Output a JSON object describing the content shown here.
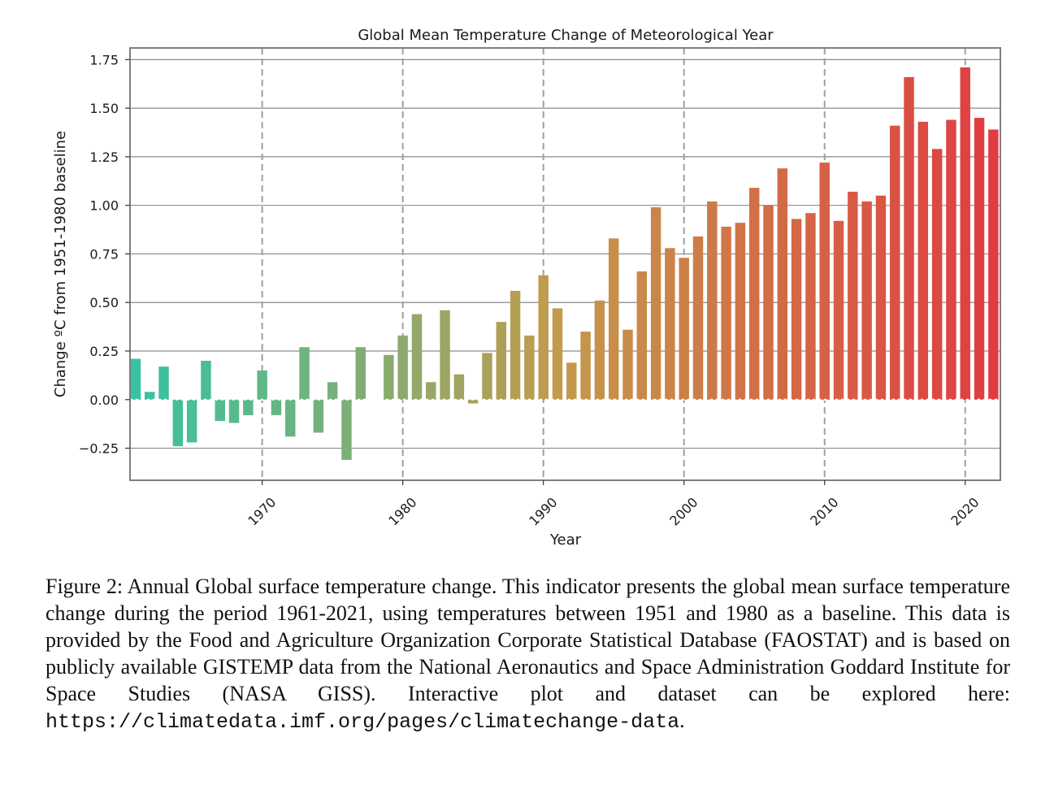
{
  "chart_data": {
    "type": "bar",
    "title": "Global Mean Temperature Change of Meteorological Year",
    "xlabel": "Year",
    "ylabel": "Change ºC from 1951-1980 baseline",
    "x": [
      1961,
      1962,
      1963,
      1964,
      1965,
      1966,
      1967,
      1968,
      1969,
      1970,
      1971,
      1972,
      1973,
      1974,
      1975,
      1976,
      1977,
      1978,
      1979,
      1980,
      1981,
      1982,
      1983,
      1984,
      1985,
      1986,
      1987,
      1988,
      1989,
      1990,
      1991,
      1992,
      1993,
      1994,
      1995,
      1996,
      1997,
      1998,
      1999,
      2000,
      2001,
      2002,
      2003,
      2004,
      2005,
      2006,
      2007,
      2008,
      2009,
      2010,
      2011,
      2012,
      2013,
      2014,
      2015,
      2016,
      2017,
      2018,
      2019,
      2020,
      2021,
      2022
    ],
    "values": [
      0.21,
      0.04,
      0.17,
      -0.24,
      -0.22,
      0.2,
      -0.11,
      -0.12,
      -0.08,
      0.15,
      -0.08,
      -0.19,
      0.27,
      -0.17,
      0.09,
      -0.31,
      0.27,
      null,
      0.23,
      0.33,
      0.44,
      0.09,
      0.46,
      0.13,
      -0.02,
      0.24,
      0.4,
      0.56,
      0.33,
      0.64,
      0.47,
      0.19,
      0.35,
      0.51,
      0.83,
      0.36,
      0.66,
      0.99,
      0.78,
      0.73,
      0.84,
      1.02,
      0.89,
      0.91,
      1.09,
      1.0,
      1.19,
      0.93,
      0.96,
      1.22,
      0.92,
      1.07,
      1.02,
      1.05,
      1.41,
      1.66,
      1.43,
      1.29,
      1.44,
      1.71,
      1.45,
      1.39
    ],
    "xlim": [
      1960.6,
      2022.5
    ],
    "ylim": [
      -0.415,
      1.81
    ],
    "xticks": [
      1970,
      1980,
      1990,
      2000,
      2010,
      2020
    ],
    "xtick_labels": [
      "1970",
      "1980",
      "1990",
      "2000",
      "2010",
      "2020"
    ],
    "yticks": [
      -0.25,
      0,
      0.25,
      0.5,
      0.75,
      1.0,
      1.25,
      1.5,
      1.75
    ],
    "ytick_labels": [
      "−0.25",
      "0.00",
      "0.25",
      "0.50",
      "0.75",
      "1.00",
      "1.25",
      "1.50",
      "1.75"
    ],
    "grid": true,
    "colors": {
      "start": "#36c3a2",
      "mid": "#c49a4b",
      "end": "#e13c42",
      "grid": "#8a8a8a",
      "vline": "#a0a0a0",
      "frame": "#7f7f7f"
    }
  },
  "caption": {
    "text": "Figure 2: Annual Global surface temperature change. This indicator presents the global mean surface temperature change during the period 1961-2021, using temperatures between 1951 and 1980 as a baseline. This data is provided by the Food and Agriculture Organization Corporate Statistical Database (FAOSTAT) and is based on publicly available GISTEMP data from the National Aeronautics and Space Administration Goddard Institute for Space Studies (NASA GISS). Interactive plot and dataset can be explored here: ",
    "url": "https://climatedata.imf.org/pages/climatechange-data",
    "end": "."
  }
}
